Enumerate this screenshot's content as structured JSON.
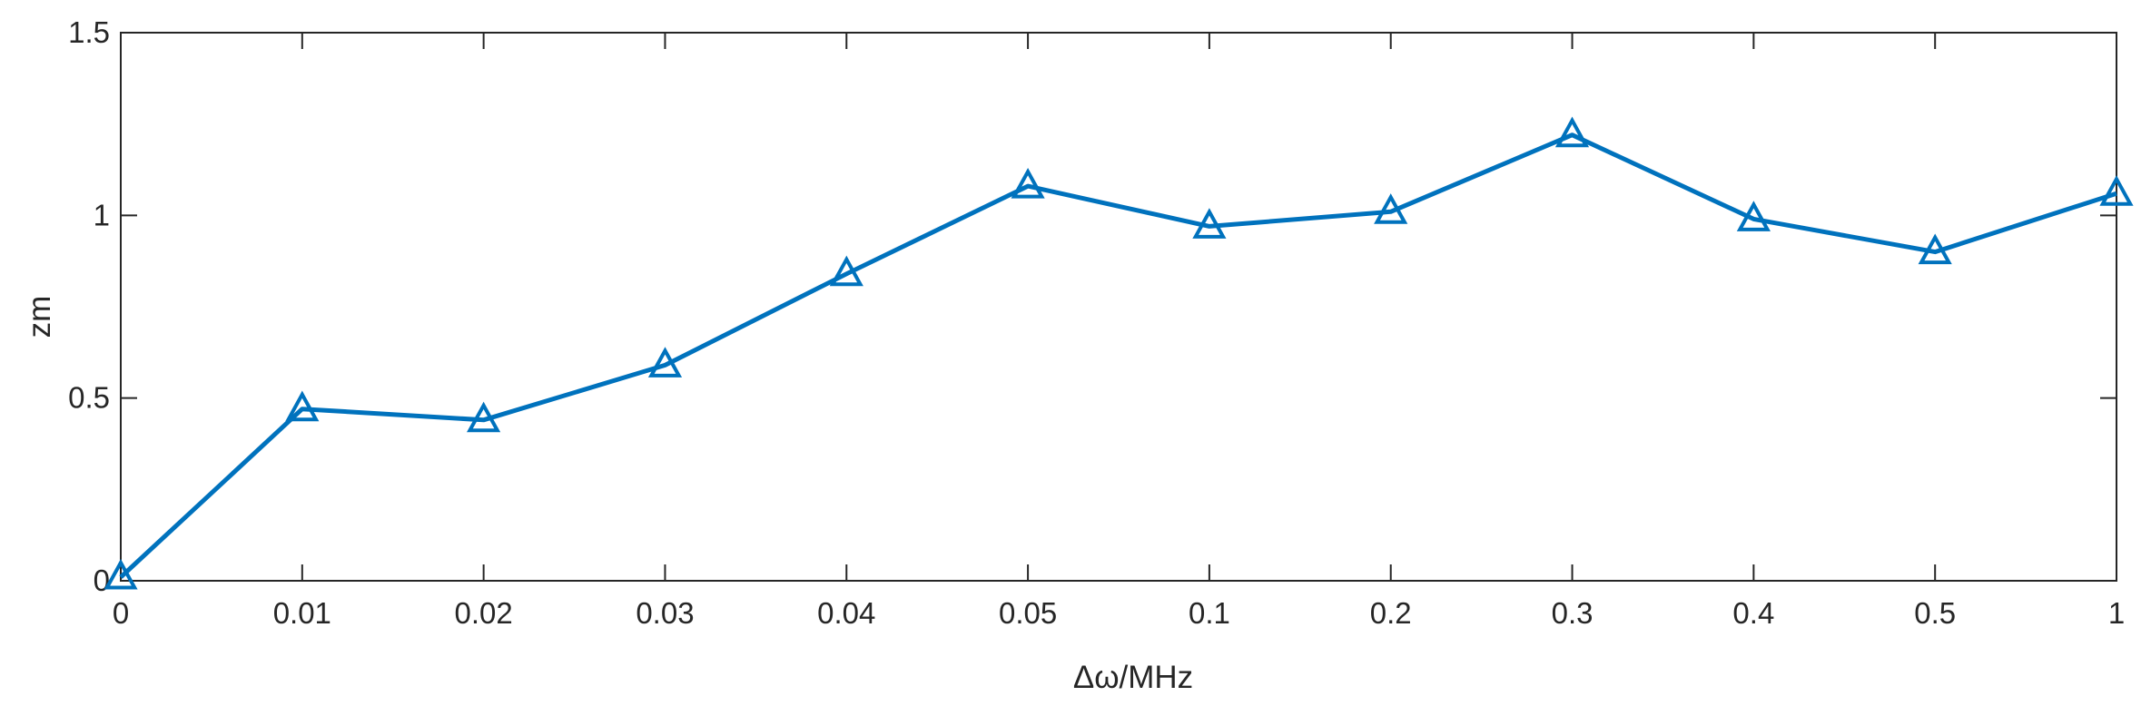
{
  "chart_data": {
    "type": "line",
    "title": "",
    "xlabel": "Δω/MHz",
    "ylabel": "zm",
    "categories": [
      "0",
      "0.01",
      "0.02",
      "0.03",
      "0.04",
      "0.05",
      "0.1",
      "0.2",
      "0.3",
      "0.4",
      "0.5",
      "1"
    ],
    "yticks": [
      "0",
      "0.5",
      "1",
      "1.5"
    ],
    "ylim": [
      0,
      1.5
    ],
    "grid": false,
    "legend": "none",
    "series": [
      {
        "values": [
          0.01,
          0.47,
          0.44,
          0.59,
          0.84,
          1.08,
          0.97,
          1.01,
          1.22,
          0.99,
          0.9,
          1.06
        ],
        "color": "#0072BD",
        "marker": "triangle"
      }
    ]
  }
}
